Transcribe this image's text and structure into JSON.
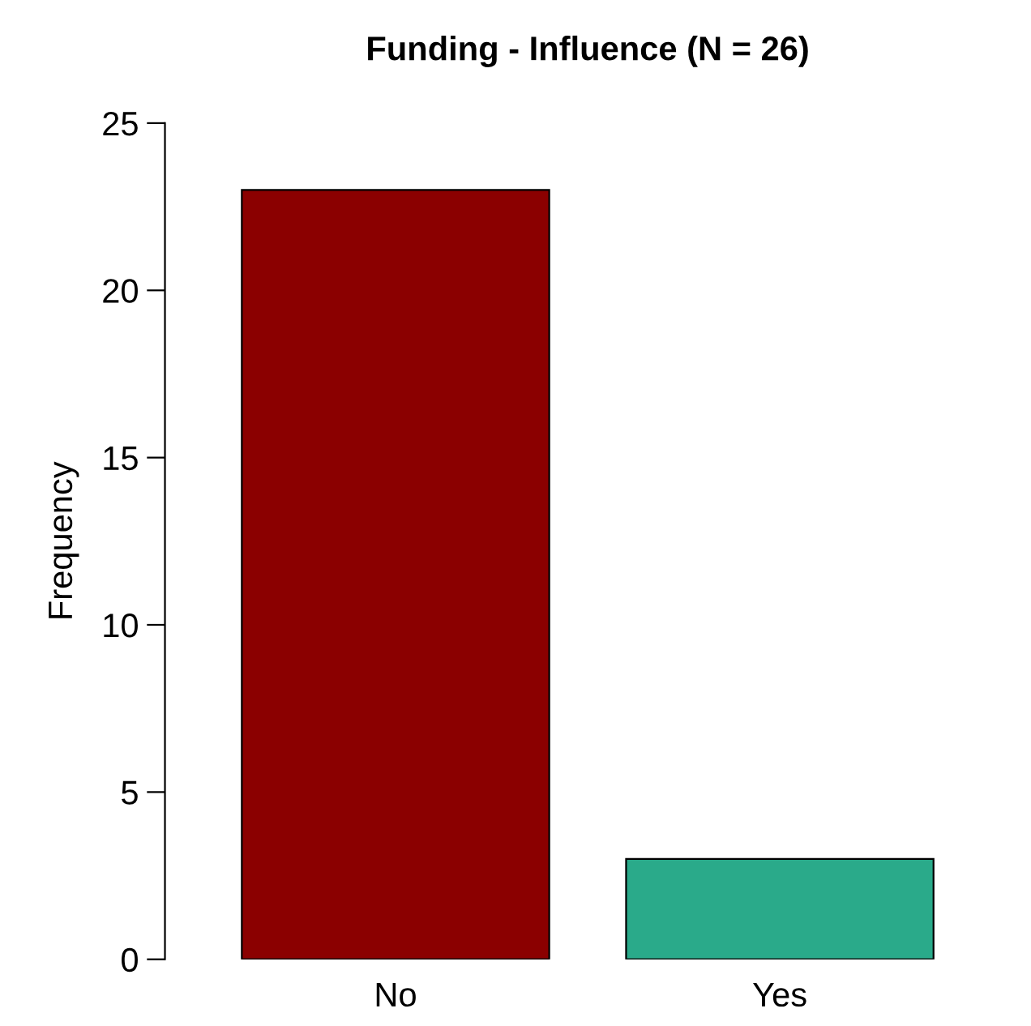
{
  "chart_data": {
    "type": "bar",
    "title": "Funding - Influence (N = 26)",
    "ylabel": "Frequency",
    "categories": [
      "No",
      "Yes"
    ],
    "values": [
      23,
      3
    ],
    "colors": [
      "#8b0000",
      "#2aaa8a"
    ],
    "ylim": [
      0,
      25
    ],
    "yticks": [
      0,
      5,
      10,
      15,
      20,
      25
    ],
    "grid": false,
    "legend": false
  }
}
